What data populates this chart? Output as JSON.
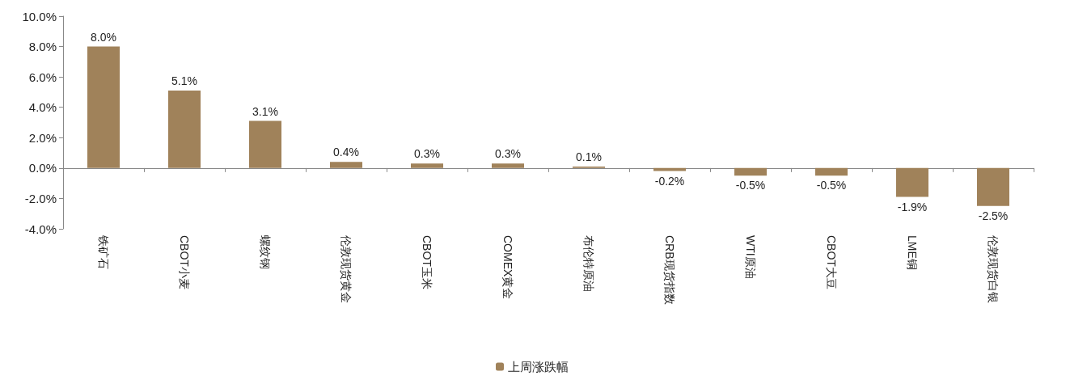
{
  "chart_data": {
    "type": "bar",
    "categories": [
      "铁矿石",
      "CBOT小麦",
      "螺纹钢",
      "伦敦现货黄金",
      "CBOT玉米",
      "COMEX黄金",
      "布伦特原油",
      "CRB现货指数",
      "WTI原油",
      "CBOT大豆",
      "LME铜",
      "伦敦现货白银"
    ],
    "series": [
      {
        "name": "上周涨跌幅",
        "color": "#a0825a",
        "values": [
          8.0,
          5.1,
          3.1,
          0.4,
          0.3,
          0.3,
          0.1,
          -0.2,
          -0.5,
          -0.5,
          -1.9,
          -2.5
        ],
        "value_labels": [
          "8.0%",
          "5.1%",
          "3.1%",
          "0.4%",
          "0.3%",
          "0.3%",
          "0.1%",
          "-0.2%",
          "-0.5%",
          "-0.5%",
          "-1.9%",
          "-2.5%"
        ]
      }
    ],
    "ylim": [
      -4,
      10
    ],
    "yticks": [
      {
        "value": -4,
        "label": "-4.0%"
      },
      {
        "value": -2,
        "label": "-2.0%"
      },
      {
        "value": 0,
        "label": "0.0%"
      },
      {
        "value": 2,
        "label": "2.0%"
      },
      {
        "value": 4,
        "label": "4.0%"
      },
      {
        "value": 6,
        "label": "6.0%"
      },
      {
        "value": 8,
        "label": "8.0%"
      },
      {
        "value": 10,
        "label": "10.0%"
      }
    ],
    "legend": "bottom"
  }
}
